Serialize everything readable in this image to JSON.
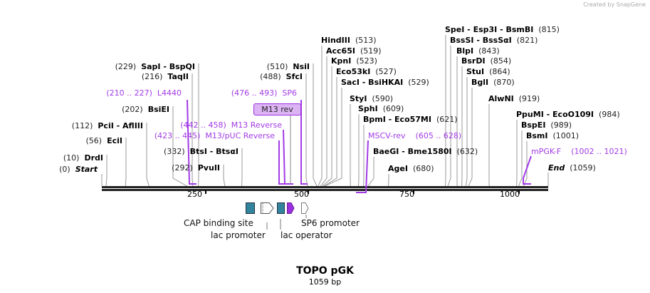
{
  "credit": "Created by SnapGene",
  "title": "TOPO pGK",
  "length_label": "1059 bp",
  "total_bp": 1059,
  "ticks": [
    "250",
    "500",
    "750",
    "1000"
  ],
  "colors": {
    "primer": "#a23be6",
    "feature_teal": "#31849b",
    "feature_purple": "#9b30e0",
    "line": "#999999"
  },
  "enzymes": [
    {
      "name": "Start",
      "pos": 0
    },
    {
      "name": "DrdI",
      "pos": 10
    },
    {
      "name": "EciI",
      "pos": 56
    },
    {
      "name": "PciI  - AflIII",
      "pos": 112
    },
    {
      "name": "BsiEI",
      "pos": 202
    },
    {
      "name": "SapI  - BspQI",
      "pos": 229
    },
    {
      "name": "TaqII",
      "pos": 216
    },
    {
      "name": "BtsI  - BtsαI",
      "pos": 332
    },
    {
      "name": "PvuII",
      "pos": 292
    },
    {
      "name": "NsiI",
      "pos": 510
    },
    {
      "name": "SfcI",
      "pos": 488
    },
    {
      "name": "HindIII",
      "pos": 513
    },
    {
      "name": "Acc65I",
      "pos": 519
    },
    {
      "name": "KpnI",
      "pos": 523
    },
    {
      "name": "Eco53kI",
      "pos": 527
    },
    {
      "name": "SacI  - BsiHKAI",
      "pos": 529
    },
    {
      "name": "StyI",
      "pos": 590
    },
    {
      "name": "SphI",
      "pos": 609
    },
    {
      "name": "BpmI  - Eco57MI",
      "pos": 621
    },
    {
      "name": "BaeGI  - Bme1580I",
      "pos": 632
    },
    {
      "name": "AgeI",
      "pos": 680
    },
    {
      "name": "SpeI  - Esp3I  - BsmBI",
      "pos": 815
    },
    {
      "name": "BssSI  - BssSαI",
      "pos": 821
    },
    {
      "name": "BlpI",
      "pos": 843
    },
    {
      "name": "BsrDI",
      "pos": 854
    },
    {
      "name": "StuI",
      "pos": 864
    },
    {
      "name": "BglI",
      "pos": 870
    },
    {
      "name": "AlwNI",
      "pos": 919
    },
    {
      "name": "PpuMI  - EcoO109I",
      "pos": 984
    },
    {
      "name": "BspEI",
      "pos": 989
    },
    {
      "name": "BsmI",
      "pos": 1001
    },
    {
      "name": "End",
      "pos": 1059
    }
  ],
  "primers": [
    {
      "name": "L4440",
      "range": "(210 .. 227)"
    },
    {
      "name": "SP6",
      "range": "(476 .. 493)"
    },
    {
      "name": "M13 Reverse",
      "range": "(442 .. 458)"
    },
    {
      "name": "M13/pUC Reverse",
      "range": "(423 .. 445)"
    },
    {
      "name": "MSCV-rev",
      "range": "(605 .. 628)"
    },
    {
      "name": "mPGK-F",
      "range": "(1002 .. 1021)"
    }
  ],
  "selected_feature": "M13 rev",
  "features": [
    "CAP binding site",
    "lac promoter",
    "lac operator",
    "SP6 promoter"
  ]
}
